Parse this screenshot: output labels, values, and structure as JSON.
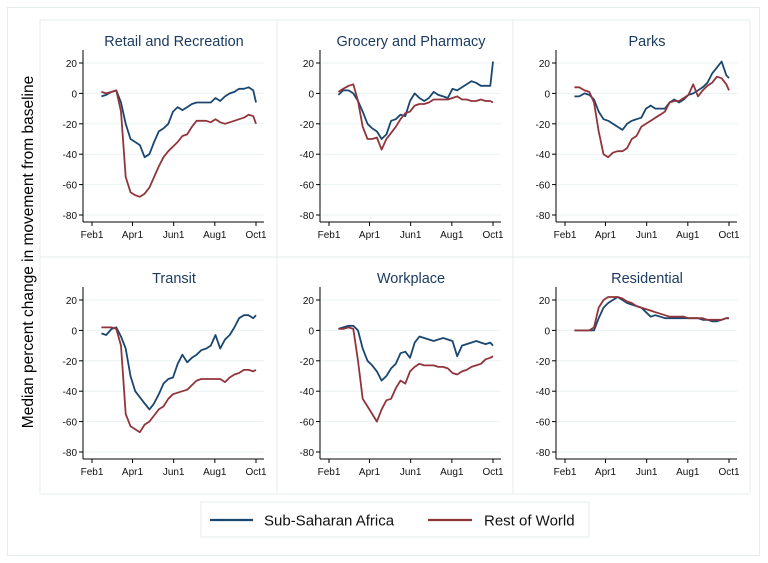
{
  "figure": {
    "ylabel": "Median percent change in movement from baseline"
  },
  "legend": {
    "placement": "bottom",
    "items": [
      {
        "label": "Sub-Saharan Africa",
        "color": "#1a476f"
      },
      {
        "label": "Rest of World",
        "color": "#90353b"
      }
    ]
  },
  "chart_data": [
    {
      "type": "line",
      "title": "Retail and Recreation",
      "ylim": [
        -80,
        20
      ],
      "yticks": [
        "20",
        "0",
        "-20",
        "-40",
        "-60",
        "-80"
      ],
      "xticks": [
        "Feb1",
        "Apr1",
        "Jun1",
        "Aug1",
        "Oct1"
      ],
      "grid": true,
      "x": [
        "Feb 15",
        "Feb 22",
        "Mar 1",
        "Mar 8",
        "Mar 15",
        "Mar 22",
        "Mar 29",
        "Apr 5",
        "Apr 12",
        "Apr 19",
        "Apr 26",
        "May 3",
        "May 10",
        "May 17",
        "May 24",
        "May 31",
        "Jun 7",
        "Jun 14",
        "Jun 21",
        "Jun 28",
        "Jul 5",
        "Jul 12",
        "Jul 19",
        "Jul 26",
        "Aug 2",
        "Aug 9",
        "Aug 16",
        "Aug 23",
        "Aug 30",
        "Sep 6",
        "Sep 13",
        "Sep 20",
        "Sep 27",
        "Oct 1"
      ],
      "series": [
        {
          "name": "Sub-Saharan Africa",
          "values": [
            -2,
            -1,
            1,
            2,
            -6,
            -20,
            -30,
            -32,
            -34,
            -42,
            -40,
            -32,
            -25,
            -23,
            -20,
            -12,
            -9,
            -11,
            -9,
            -7,
            -6,
            -6,
            -6,
            -6,
            -3,
            -5,
            -2,
            0,
            1,
            3,
            3,
            4,
            2,
            -6
          ]
        },
        {
          "name": "Rest of World",
          "values": [
            1,
            0,
            1,
            2,
            -12,
            -55,
            -65,
            -67,
            -68,
            -66,
            -62,
            -55,
            -48,
            -42,
            -38,
            -35,
            -32,
            -28,
            -27,
            -22,
            -18,
            -18,
            -18,
            -19,
            -17,
            -19,
            -20,
            -19,
            -18,
            -17,
            -16,
            -14,
            -15,
            -20
          ]
        }
      ]
    },
    {
      "type": "line",
      "title": "Grocery and Pharmacy",
      "ylim": [
        -80,
        20
      ],
      "yticks": [
        "20",
        "0",
        "-20",
        "-40",
        "-60",
        "-80"
      ],
      "xticks": [
        "Feb1",
        "Apr1",
        "Jun1",
        "Aug1",
        "Oct1"
      ],
      "grid": true,
      "x": [
        "Feb 15",
        "Feb 22",
        "Mar 1",
        "Mar 8",
        "Mar 15",
        "Mar 22",
        "Mar 29",
        "Apr 5",
        "Apr 12",
        "Apr 19",
        "Apr 26",
        "May 3",
        "May 10",
        "May 17",
        "May 24",
        "May 31",
        "Jun 7",
        "Jun 14",
        "Jun 21",
        "Jun 28",
        "Jul 5",
        "Jul 12",
        "Jul 19",
        "Jul 26",
        "Aug 2",
        "Aug 9",
        "Aug 16",
        "Aug 23",
        "Aug 30",
        "Sep 6",
        "Sep 13",
        "Sep 20",
        "Sep 27",
        "Oct 1"
      ],
      "series": [
        {
          "name": "Sub-Saharan Africa",
          "values": [
            -1,
            2,
            2,
            0,
            -5,
            -12,
            -20,
            -23,
            -25,
            -30,
            -27,
            -18,
            -17,
            -14,
            -15,
            -5,
            0,
            -3,
            -5,
            -3,
            1,
            -1,
            -2,
            -3,
            3,
            2,
            4,
            6,
            8,
            7,
            5,
            5,
            5,
            21
          ]
        },
        {
          "name": "Rest of World",
          "values": [
            1,
            3,
            5,
            6,
            -5,
            -22,
            -30,
            -30,
            -29,
            -37,
            -30,
            -26,
            -22,
            -17,
            -13,
            -12,
            -8,
            -7,
            -7,
            -6,
            -4,
            -4,
            -4,
            -4,
            -3,
            -2,
            -4,
            -4,
            -5,
            -5,
            -4,
            -5,
            -5,
            -6
          ]
        }
      ]
    },
    {
      "type": "line",
      "title": "Parks",
      "ylim": [
        -80,
        20
      ],
      "yticks": [
        "20",
        "0",
        "-20",
        "-40",
        "-60",
        "-80"
      ],
      "xticks": [
        "Feb1",
        "Apr1",
        "Jun1",
        "Aug1",
        "Oct1"
      ],
      "grid": true,
      "x": [
        "Feb 15",
        "Feb 22",
        "Mar 1",
        "Mar 8",
        "Mar 15",
        "Mar 22",
        "Mar 29",
        "Apr 5",
        "Apr 12",
        "Apr 19",
        "Apr 26",
        "May 3",
        "May 10",
        "May 17",
        "May 24",
        "May 31",
        "Jun 7",
        "Jun 14",
        "Jun 21",
        "Jun 28",
        "Jul 5",
        "Jul 12",
        "Jul 19",
        "Jul 26",
        "Aug 2",
        "Aug 9",
        "Aug 16",
        "Aug 23",
        "Aug 30",
        "Sep 6",
        "Sep 13",
        "Sep 20",
        "Sep 27",
        "Oct 1"
      ],
      "series": [
        {
          "name": "Sub-Saharan Africa",
          "values": [
            -2,
            -2,
            0,
            -1,
            -4,
            -12,
            -17,
            -18,
            -20,
            -22,
            -24,
            -20,
            -18,
            -17,
            -16,
            -10,
            -8,
            -10,
            -10,
            -10,
            -6,
            -4,
            -6,
            -4,
            -1,
            0,
            2,
            4,
            7,
            13,
            17,
            21,
            12,
            10
          ]
        },
        {
          "name": "Rest of World",
          "values": [
            4,
            4,
            2,
            1,
            -6,
            -25,
            -40,
            -42,
            -39,
            -38,
            -38,
            -36,
            -30,
            -28,
            -22,
            -20,
            -18,
            -16,
            -14,
            -12,
            -6,
            -5,
            -5,
            -3,
            -1,
            6,
            -2,
            2,
            5,
            7,
            11,
            10,
            6,
            2
          ]
        }
      ]
    },
    {
      "type": "line",
      "title": "Transit",
      "ylim": [
        -80,
        20
      ],
      "yticks": [
        "20",
        "0",
        "-20",
        "-40",
        "-60",
        "-80"
      ],
      "xticks": [
        "Feb1",
        "Apr1",
        "Jun1",
        "Aug1",
        "Oct1"
      ],
      "grid": true,
      "x": [
        "Feb 15",
        "Feb 22",
        "Mar 1",
        "Mar 8",
        "Mar 15",
        "Mar 22",
        "Mar 29",
        "Apr 5",
        "Apr 12",
        "Apr 19",
        "Apr 26",
        "May 3",
        "May 10",
        "May 17",
        "May 24",
        "May 31",
        "Jun 7",
        "Jun 14",
        "Jun 21",
        "Jun 28",
        "Jul 5",
        "Jul 12",
        "Jul 19",
        "Jul 26",
        "Aug 2",
        "Aug 9",
        "Aug 16",
        "Aug 23",
        "Aug 30",
        "Sep 6",
        "Sep 13",
        "Sep 20",
        "Sep 27",
        "Oct 1"
      ],
      "series": [
        {
          "name": "Sub-Saharan Africa",
          "values": [
            -2,
            -3,
            1,
            2,
            -4,
            -12,
            -30,
            -40,
            -44,
            -48,
            -52,
            -48,
            -42,
            -35,
            -32,
            -31,
            -22,
            -16,
            -21,
            -18,
            -16,
            -13,
            -12,
            -10,
            -3,
            -12,
            -6,
            -3,
            2,
            8,
            10,
            10,
            8,
            10
          ]
        },
        {
          "name": "Rest of World",
          "values": [
            2,
            2,
            2,
            1,
            -10,
            -55,
            -63,
            -65,
            -67,
            -62,
            -60,
            -56,
            -52,
            -50,
            -45,
            -42,
            -41,
            -40,
            -39,
            -36,
            -33,
            -32,
            -32,
            -32,
            -32,
            -32,
            -34,
            -31,
            -29,
            -28,
            -26,
            -26,
            -27,
            -26
          ]
        }
      ]
    },
    {
      "type": "line",
      "title": "Workplace",
      "ylim": [
        -80,
        20
      ],
      "yticks": [
        "20",
        "0",
        "-20",
        "-40",
        "-60",
        "-80"
      ],
      "xticks": [
        "Feb1",
        "Apr1",
        "Jun1",
        "Aug1",
        "Oct1"
      ],
      "grid": true,
      "x": [
        "Feb 15",
        "Feb 22",
        "Mar 1",
        "Mar 8",
        "Mar 15",
        "Mar 22",
        "Mar 29",
        "Apr 5",
        "Apr 12",
        "Apr 19",
        "Apr 26",
        "May 3",
        "May 10",
        "May 17",
        "May 24",
        "May 31",
        "Jun 7",
        "Jun 14",
        "Jun 21",
        "Jun 28",
        "Jul 5",
        "Jul 12",
        "Jul 19",
        "Jul 26",
        "Aug 2",
        "Aug 9",
        "Aug 16",
        "Aug 23",
        "Aug 30",
        "Sep 6",
        "Sep 13",
        "Sep 20",
        "Sep 27",
        "Oct 1"
      ],
      "series": [
        {
          "name": "Sub-Saharan Africa",
          "values": [
            1,
            2,
            3,
            3,
            0,
            -12,
            -20,
            -23,
            -27,
            -33,
            -30,
            -25,
            -22,
            -15,
            -14,
            -18,
            -8,
            -4,
            -5,
            -6,
            -7,
            -6,
            -5,
            -6,
            -7,
            -17,
            -10,
            -9,
            -8,
            -7,
            -8,
            -9,
            -8,
            -10
          ]
        },
        {
          "name": "Rest of World",
          "values": [
            1,
            1,
            2,
            1,
            -20,
            -45,
            -50,
            -55,
            -60,
            -52,
            -46,
            -45,
            -38,
            -33,
            -35,
            -27,
            -24,
            -22,
            -23,
            -23,
            -23,
            -24,
            -24,
            -25,
            -28,
            -29,
            -27,
            -26,
            -24,
            -23,
            -22,
            -19,
            -18,
            -17
          ]
        }
      ]
    },
    {
      "type": "line",
      "title": "Residential",
      "ylim": [
        -80,
        20
      ],
      "yticks": [
        "20",
        "0",
        "-20",
        "-40",
        "-60",
        "-80"
      ],
      "xticks": [
        "Feb1",
        "Apr1",
        "Jun1",
        "Aug1",
        "Oct1"
      ],
      "grid": true,
      "x": [
        "Feb 15",
        "Feb 22",
        "Mar 1",
        "Mar 8",
        "Mar 15",
        "Mar 22",
        "Mar 29",
        "Apr 5",
        "Apr 12",
        "Apr 19",
        "Apr 26",
        "May 3",
        "May 10",
        "May 17",
        "May 24",
        "May 31",
        "Jun 7",
        "Jun 14",
        "Jun 21",
        "Jun 28",
        "Jul 5",
        "Jul 12",
        "Jul 19",
        "Jul 26",
        "Aug 2",
        "Aug 9",
        "Aug 16",
        "Aug 23",
        "Aug 30",
        "Sep 6",
        "Sep 13",
        "Sep 20",
        "Sep 27",
        "Oct 1"
      ],
      "series": [
        {
          "name": "Sub-Saharan Africa",
          "values": [
            0,
            0,
            0,
            0,
            0,
            8,
            15,
            18,
            20,
            22,
            20,
            18,
            17,
            16,
            15,
            12,
            9,
            10,
            9,
            8,
            8,
            8,
            8,
            8,
            8,
            8,
            8,
            7,
            7,
            6,
            6,
            7,
            8,
            8
          ]
        },
        {
          "name": "Rest of World",
          "values": [
            0,
            0,
            0,
            0,
            2,
            15,
            20,
            22,
            22,
            22,
            21,
            19,
            18,
            16,
            15,
            14,
            13,
            12,
            11,
            10,
            9,
            9,
            9,
            9,
            8,
            8,
            8,
            8,
            7,
            7,
            7,
            7,
            8,
            8
          ]
        }
      ]
    }
  ]
}
